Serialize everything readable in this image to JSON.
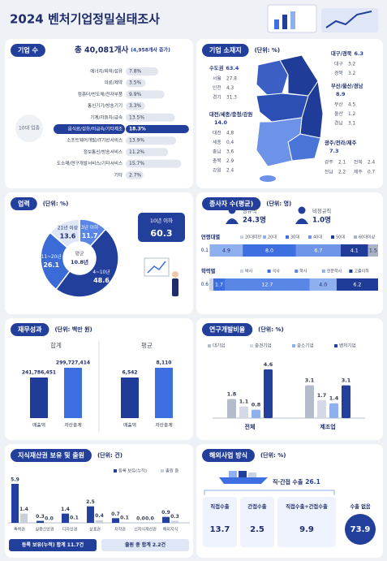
{
  "title": "2024 벤처기업정밀실태조사",
  "companies": {
    "heading": "기업 수",
    "total": "총 40,081개사",
    "increase": "(4,958개사 증가)",
    "group_label": "10대 업종",
    "categories": [
      "에너지/화학/섬유",
      "의료/제약",
      "컴퓨터/반도체/전자부품",
      "통신기기/방송기기",
      "기계/자동차/금속",
      "음식료/섬유/비금속/기타제조",
      "소프트웨어개발/IT기반서비스",
      "정보통신/방송서비스",
      "도소매/연구개발서비스/기타서비스",
      "기타"
    ],
    "values": [
      7.8,
      3.5,
      9.9,
      3.3,
      13.5,
      18.3,
      13.9,
      11.2,
      15.7,
      2.7
    ],
    "value_labels": [
      "7.8%",
      "3.5%",
      "9.9%",
      "3.3%",
      "13.5%",
      "18.3%",
      "13.9%",
      "11.2%",
      "15.7%",
      "2.7%"
    ],
    "colors": [
      "#e1e6ef",
      "#e1e6ef",
      "#e1e6ef",
      "#e1e6ef",
      "#e1e6ef",
      "#233f9c",
      "#e1e6ef",
      "#e1e6ef",
      "#e1e6ef",
      "#e1e6ef"
    ]
  },
  "location": {
    "heading": "기업 소재지",
    "unit": "(단위: %)",
    "regions": [
      {
        "name": "수도권",
        "value": "63.4",
        "areas": [
          {
            "name": "서울",
            "value": "27.8"
          },
          {
            "name": "인천",
            "value": "4.3"
          },
          {
            "name": "경기",
            "value": "31.3"
          }
        ]
      },
      {
        "name": "대전/세종/충청/강원",
        "value": "14.0",
        "areas": [
          {
            "name": "대전",
            "value": "4.8"
          },
          {
            "name": "세종",
            "value": "0.4"
          },
          {
            "name": "충남",
            "value": "3.6"
          },
          {
            "name": "충북",
            "value": "2.9"
          },
          {
            "name": "강원",
            "value": "2.4"
          }
        ]
      },
      {
        "name": "대구/경북",
        "value": "6.3",
        "areas": [
          {
            "name": "대구",
            "value": "3.2"
          },
          {
            "name": "경북",
            "value": "3.2"
          }
        ]
      },
      {
        "name": "부산/울산/경남",
        "value": "8.9",
        "areas": [
          {
            "name": "부산",
            "value": "4.5"
          },
          {
            "name": "울산",
            "value": "1.2"
          },
          {
            "name": "경남",
            "value": "3.1"
          }
        ]
      },
      {
        "name": "광주/전라/제주",
        "value": "7.3",
        "areas": [
          {
            "name": "광주",
            "value": "2.1"
          },
          {
            "name": "전북",
            "value": "2.4"
          },
          {
            "name": "전남",
            "value": "2.2"
          },
          {
            "name": "제주",
            "value": "0.7"
          }
        ]
      }
    ]
  },
  "history": {
    "heading": "업력",
    "unit": "(단위: %)",
    "categories": [
      "3년 이하",
      "4~10년",
      "11~20년",
      "21년 이상"
    ],
    "values": [
      11.7,
      48.6,
      26.1,
      13.6
    ],
    "colors": [
      "#5a86e6",
      "#233f9c",
      "#3a6bd6",
      "#dfe6f6"
    ],
    "average_label": "평균",
    "average": "10.8년",
    "callout_label": "10년 이하",
    "callout_value": "60.3"
  },
  "employees": {
    "heading": "종사자 수(평균)",
    "unit": "(단위: 명)",
    "types": [
      {
        "name": "정규직",
        "value": "24.3명"
      },
      {
        "name": "비정규직",
        "value": "1.0명"
      }
    ],
    "breakdowns": [
      {
        "name": "연령대별",
        "categories": [
          "20대미만",
          "20대",
          "30대",
          "40대",
          "50대",
          "60대이상"
        ],
        "values": [
          0.1,
          4.9,
          8.0,
          6.7,
          4.1,
          1.5
        ],
        "value_labels": [
          "0.1",
          "4.9",
          "8.0",
          "6.7",
          "4.1",
          "1.5"
        ],
        "colors": [
          "#c9d2e6",
          "#8fb0ee",
          "#3d6fe0",
          "#6e95e8",
          "#1f3c99",
          "#a9b3c6"
        ]
      },
      {
        "name": "학력별",
        "categories": [
          "박사",
          "석사",
          "학사",
          "전문학사",
          "고졸이하"
        ],
        "values": [
          0.6,
          1.7,
          12.7,
          4.0,
          6.2
        ],
        "value_labels": [
          "0.6",
          "1.7",
          "12.7",
          "4.0",
          "6.2"
        ],
        "colors": [
          "#c9d2e6",
          "#3d6fe0",
          "#5a86e6",
          "#8fb0ee",
          "#1f3c99"
        ]
      }
    ]
  },
  "finance": {
    "heading": "재무성과",
    "unit": "(단위: 백만 원)",
    "colors": [
      "#1f3c99",
      "#3d6fe0"
    ],
    "groups": [
      {
        "name": "합계",
        "categories": [
          "매출액",
          "자산총계"
        ],
        "values": [
          241786451,
          299727414
        ],
        "value_labels": [
          "241,786,451",
          "299,727,414"
        ]
      },
      {
        "name": "평균",
        "categories": [
          "매출액",
          "자산총계"
        ],
        "values": [
          6542,
          8110
        ],
        "value_labels": [
          "6,542",
          "8,110"
        ]
      }
    ]
  },
  "rnd": {
    "heading": "연구개발비율",
    "unit": "(단위: %)",
    "categories": [
      "전체",
      "제조업"
    ],
    "series": [
      {
        "name": "대기업",
        "color": "#b4bccb",
        "values": [
          1.8,
          3.1
        ]
      },
      {
        "name": "중견기업",
        "color": "#d3d9e6",
        "values": [
          1.1,
          1.7
        ]
      },
      {
        "name": "중소기업",
        "color": "#8fb0ee",
        "values": [
          0.8,
          1.4
        ]
      },
      {
        "name": "벤처기업",
        "color": "#233f9c",
        "values": [
          4.6,
          3.1
        ]
      }
    ]
  },
  "ip": {
    "heading": "지식재산권 보유 및 출원",
    "unit": "(단위: 건)",
    "categories": [
      "특허권",
      "실용신안권",
      "디자인권",
      "상표권",
      "저작권",
      "신지식재산권",
      "해외지식"
    ],
    "series": [
      {
        "name": "등록 보유(누적)",
        "color": "#24409e",
        "values": [
          5.9,
          0.3,
          1.4,
          2.5,
          0.7,
          0.0,
          0.9
        ],
        "value_labels": [
          "5.9",
          "0.3",
          "1.4",
          "2.5",
          "0.7",
          "0.0",
          "0.9"
        ]
      },
      {
        "name": "출원 중",
        "color": "#c9cfdb",
        "values": [
          1.4,
          0.0,
          0.1,
          0.4,
          0.1,
          0.0,
          0.3
        ],
        "value_labels": [
          "1.4",
          "0.0",
          "0.1",
          "0.4",
          "0.1",
          "0.0",
          "0.3"
        ]
      }
    ],
    "totals": [
      "등록 보유(누적) 합계 11.7건",
      "출원 중 합계 2.2건"
    ]
  },
  "overseas": {
    "heading": "해외사업 방식",
    "unit": "(단위: %)",
    "export_label": "직·간접 수출",
    "export_value": "26.1",
    "methods": [
      {
        "name": "직접수출",
        "value": "13.7"
      },
      {
        "name": "간접수출",
        "value": "2.5"
      },
      {
        "name": "직접수출+간접수출",
        "value": "9.9"
      }
    ],
    "no_export": {
      "name": "수출 없음",
      "value": "73.9"
    }
  }
}
